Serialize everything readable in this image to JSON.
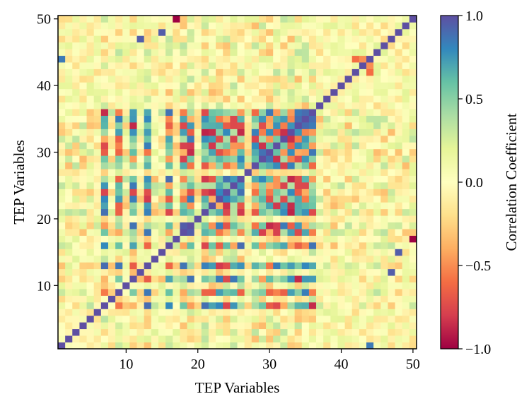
{
  "chart_data": {
    "type": "heatmap",
    "title": "",
    "xlabel": "TEP Variables",
    "ylabel": "TEP Variables",
    "x_range": [
      1,
      50
    ],
    "y_range": [
      1,
      50
    ],
    "x_ticks": [
      10,
      20,
      30,
      40,
      50
    ],
    "y_ticks": [
      10,
      20,
      30,
      40,
      50
    ],
    "n_variables": 50,
    "colorbar": {
      "label": "Correlation Coefficient",
      "vmin": -1.0,
      "vmax": 1.0,
      "ticks": [
        -1.0,
        -0.5,
        0.0,
        0.5,
        1.0
      ],
      "tick_labels": [
        "−1.0",
        "−0.5",
        "0.0",
        "0.5",
        "1.0"
      ],
      "colormap": "Spectral",
      "colormap_stops": [
        "#9e0142",
        "#d53e4f",
        "#f46d43",
        "#fdae61",
        "#fee08b",
        "#ffffbf",
        "#e6f598",
        "#abdda4",
        "#66c2a5",
        "#3288bd",
        "#5e4fa2"
      ]
    },
    "diagonal_value": 1.0,
    "group_a": [
      7,
      9,
      11,
      13,
      16,
      18,
      19,
      21,
      22,
      23,
      24,
      25,
      26,
      28,
      29,
      30,
      31,
      32,
      33,
      34,
      35,
      36
    ],
    "group_b": [
      2,
      3,
      4,
      5,
      6,
      8,
      10,
      12,
      14,
      15,
      17,
      20,
      27,
      37,
      38,
      39,
      40,
      41,
      42,
      43,
      44,
      45,
      46,
      47,
      48,
      49,
      50
    ],
    "notable_cells": [
      {
        "i": 17,
        "j": 50,
        "value": -1.0
      },
      {
        "i": 18,
        "j": 19,
        "value": 0.95
      },
      {
        "i": 34,
        "j": 35,
        "value": 0.9
      },
      {
        "i": 35,
        "j": 36,
        "value": 0.9
      },
      {
        "i": 34,
        "j": 36,
        "value": 0.85
      },
      {
        "i": 1,
        "j": 44,
        "value": 0.85
      },
      {
        "i": 12,
        "j": 47,
        "value": 0.95
      },
      {
        "i": 15,
        "j": 48,
        "value": 0.95
      },
      {
        "i": 42,
        "j": 44,
        "value": -0.6
      },
      {
        "i": 43,
        "j": 44,
        "value": -0.5
      }
    ]
  }
}
